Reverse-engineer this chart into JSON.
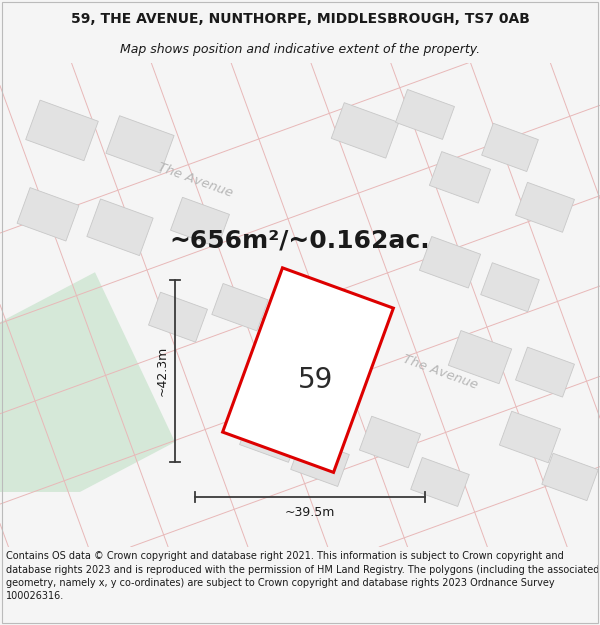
{
  "title_line1": "59, THE AVENUE, NUNTHORPE, MIDDLESBROUGH, TS7 0AB",
  "title_line2": "Map shows position and indicative extent of the property.",
  "area_text": "~656m²/~0.162ac.",
  "label_number": "59",
  "dim_width": "~39.5m",
  "dim_height": "~42.3m",
  "footer_text": "Contains OS data © Crown copyright and database right 2021. This information is subject to Crown copyright and database rights 2023 and is reproduced with the permission of HM Land Registry. The polygons (including the associated geometry, namely x, y co-ordinates) are subject to Crown copyright and database rights 2023 Ordnance Survey 100026316.",
  "bg_color": "#f5f5f5",
  "map_bg": "#f7f7f7",
  "road_line_color": "#e8b8b8",
  "block_color": "#e2e2e2",
  "block_outline": "#c8c8c8",
  "green_area_color": "#d5e8d8",
  "plot_outline_color": "#dd0000",
  "plot_fill_color": "#ffffff",
  "dim_line_color": "#3a3a3a",
  "road_label_color": "#b8b8b8",
  "title_fontsize": 10,
  "subtitle_fontsize": 9,
  "area_fontsize": 18,
  "number_fontsize": 20,
  "dim_fontsize": 9,
  "footer_fontsize": 7
}
